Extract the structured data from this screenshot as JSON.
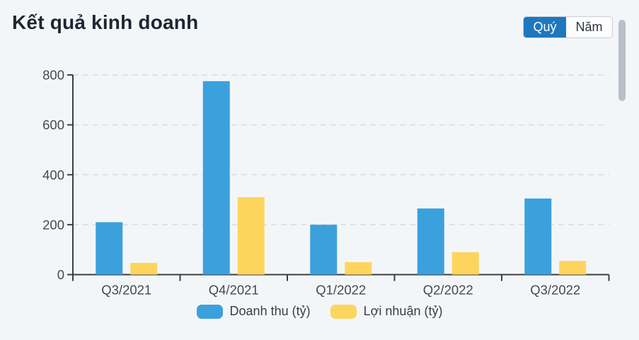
{
  "header": {
    "title": "Kết quả kinh doanh",
    "toggle": {
      "options": [
        "Quý",
        "Năm"
      ],
      "active": "Quý"
    }
  },
  "colors": {
    "background": "#f3f6f9",
    "revenue_bar": "#3ba1dc",
    "profit_bar": "#fdd55d",
    "toggle_active_bg": "#1e78bd",
    "axis": "#3d3d3d",
    "gridline": "#d8dce1",
    "scrollbar_thumb": "#b9bfc6"
  },
  "chart_data": {
    "type": "bar",
    "categories": [
      "Q3/2021",
      "Q4/2021",
      "Q1/2022",
      "Q2/2022",
      "Q3/2022"
    ],
    "series": [
      {
        "name": "Doanh thu (tỷ)",
        "color": "#3ba1dc",
        "values": [
          210,
          775,
          200,
          265,
          305
        ]
      },
      {
        "name": "Lợi nhuận (tỷ)",
        "color": "#fdd55d",
        "values": [
          47,
          310,
          50,
          90,
          55
        ]
      }
    ],
    "ylim": [
      0,
      800
    ],
    "yticks": [
      0,
      200,
      400,
      600,
      800
    ],
    "grid": true,
    "grid_style": "dashed",
    "legend_position": "bottom"
  }
}
